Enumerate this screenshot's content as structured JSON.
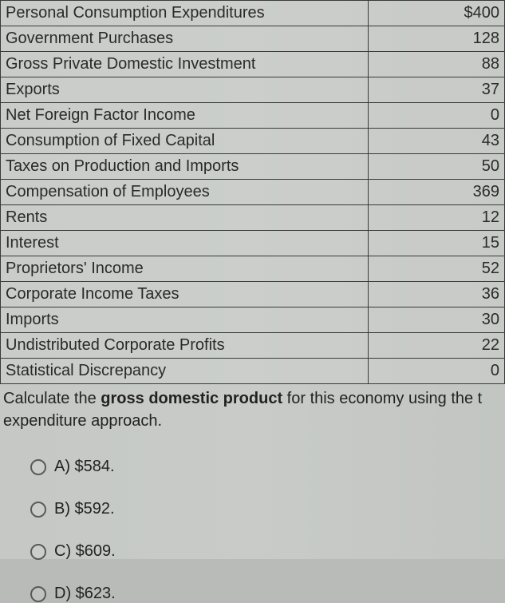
{
  "table": {
    "rows": [
      {
        "label": "Personal Consumption Expenditures",
        "value": "$400"
      },
      {
        "label": "Government Purchases",
        "value": "128"
      },
      {
        "label": "Gross Private Domestic Investment",
        "value": "88"
      },
      {
        "label": "Exports",
        "value": "37"
      },
      {
        "label": "Net Foreign Factor Income",
        "value": "0"
      },
      {
        "label": "Consumption of Fixed Capital",
        "value": "43"
      },
      {
        "label": "Taxes on Production and Imports",
        "value": "50"
      },
      {
        "label": "Compensation of Employees",
        "value": "369"
      },
      {
        "label": "Rents",
        "value": "12"
      },
      {
        "label": "Interest",
        "value": "15"
      },
      {
        "label": "Proprietors' Income",
        "value": "52"
      },
      {
        "label": "Corporate Income Taxes",
        "value": "36"
      },
      {
        "label": "Imports",
        "value": "30"
      },
      {
        "label": "Undistributed Corporate Profits",
        "value": "22"
      },
      {
        "label": "Statistical Discrepancy",
        "value": "0"
      }
    ],
    "border_color": "#3a3a3a",
    "font_size": 20
  },
  "question": {
    "prefix": "Calculate the ",
    "bold_part": "gross domestic product",
    "suffix": " for this economy using the t expenditure approach."
  },
  "options": [
    {
      "key": "A",
      "text": "A) $584."
    },
    {
      "key": "B",
      "text": "B) $592."
    },
    {
      "key": "C",
      "text": "C) $609."
    },
    {
      "key": "D",
      "text": "D) $623."
    }
  ],
  "styling": {
    "background_color": "#c5c8c5",
    "text_color": "#2a2a2a",
    "radio_border_color": "#5a5a5a",
    "radio_size": 20
  }
}
